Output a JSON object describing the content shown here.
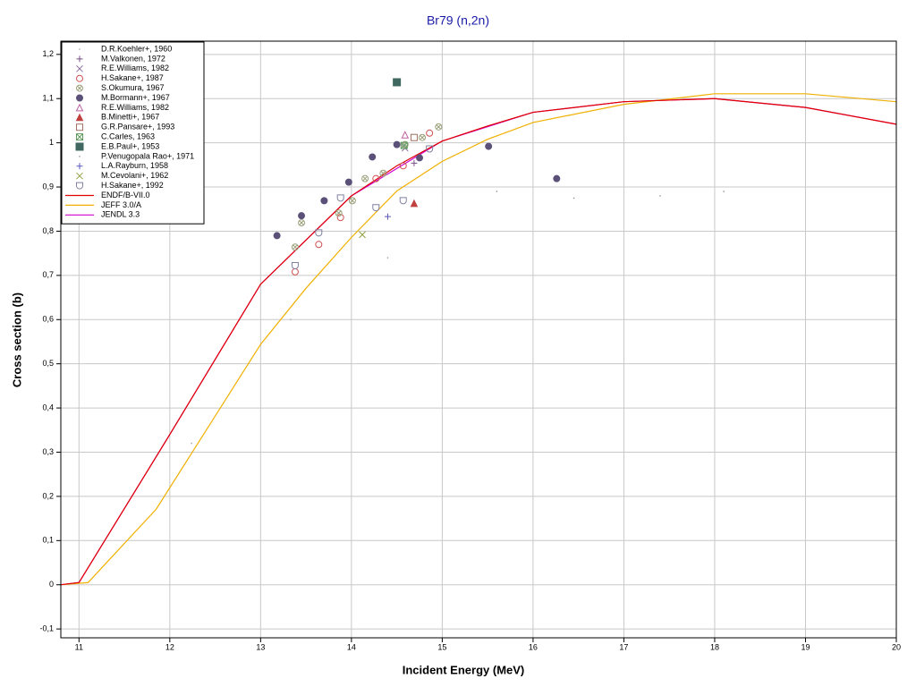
{
  "chart_data": {
    "type": "scatter",
    "title": "Br79 (n,2n)",
    "x_label": "Incident Energy (MeV)",
    "y_label": "Cross section (b)",
    "xlim": [
      10.8,
      20
    ],
    "ylim": [
      -0.12,
      1.23
    ],
    "xticks": [
      11,
      12,
      13,
      14,
      15,
      16,
      17,
      18,
      19,
      20
    ],
    "yticks": [
      {
        "value": -0.1,
        "label": "-0,1"
      },
      0,
      {
        "value": 0.1,
        "label": "0,1"
      },
      {
        "value": 0.2,
        "label": "0,2"
      },
      {
        "value": 0.3,
        "label": "0,3"
      },
      {
        "value": 0.4,
        "label": "0,4"
      },
      {
        "value": 0.5,
        "label": "0,5"
      },
      {
        "value": 0.6,
        "label": "0,6"
      },
      {
        "value": 0.7,
        "label": "0,7"
      },
      {
        "value": 0.8,
        "label": "0,8"
      },
      {
        "value": 0.9,
        "label": "0,9"
      },
      1,
      {
        "value": 1.1,
        "label": "1,1"
      },
      {
        "value": 1.2,
        "label": "1,2"
      }
    ],
    "grid": true,
    "legend": "top-left",
    "series": [
      {
        "name": "D.R.Koehler+, 1960",
        "color": "#a0a0a0",
        "marker": "dot",
        "x": [
          12.24,
          13.33,
          14.4
        ],
        "values": [
          0.32,
          0.6,
          0.74
        ]
      },
      {
        "name": "M.Valkonen, 1972",
        "color": "#7a4c8a",
        "marker": "plus",
        "x": [
          14.69
        ],
        "values": [
          0.954
        ]
      },
      {
        "name": "R.E.Williams, 1982",
        "color": "#8a6a9a",
        "marker": "x",
        "x": [
          14.59
        ],
        "values": [
          0.988
        ]
      },
      {
        "name": "H.Sakane+, 1987",
        "color": "#d05050",
        "marker": "circle",
        "x": [
          13.38,
          13.64,
          13.88,
          14.27,
          14.57,
          14.86
        ],
        "values": [
          0.708,
          0.77,
          0.831,
          0.919,
          0.948,
          1.022
        ]
      },
      {
        "name": "S.Okumura, 1967",
        "color": "#9aa07a",
        "marker": "circle-x",
        "x": [
          13.38,
          13.45,
          13.86,
          14.01,
          14.15,
          14.35,
          14.59,
          14.78,
          14.96
        ],
        "values": [
          0.764,
          0.819,
          0.841,
          0.869,
          0.919,
          0.931,
          0.996,
          1.012,
          1.036
        ]
      },
      {
        "name": "M.Bormann+, 1967",
        "color": "#5a5078",
        "marker": "filled-circle",
        "x": [
          13.18,
          13.45,
          13.7,
          13.97,
          14.23,
          14.5,
          14.75,
          15.51,
          16.26
        ],
        "values": [
          0.79,
          0.835,
          0.869,
          0.911,
          0.968,
          0.996,
          0.966,
          0.992,
          0.919
        ]
      },
      {
        "name": "R.E.Williams, 1982",
        "color": "#c060a0",
        "marker": "triangle",
        "x": [
          14.59
        ],
        "values": [
          1.018
        ]
      },
      {
        "name": "B.Minetti+, 1967",
        "color": "#c04040",
        "marker": "filled-triangle",
        "x": [
          14.69
        ],
        "values": [
          0.863
        ]
      },
      {
        "name": "G.R.Pansare+, 1993",
        "color": "#a07060",
        "marker": "square",
        "x": [
          14.69
        ],
        "values": [
          1.012
        ]
      },
      {
        "name": "C.Carles, 1963",
        "color": "#609a60",
        "marker": "square-x",
        "x": [
          14.58
        ],
        "values": [
          0.994
        ]
      },
      {
        "name": "E.B.Paul+, 1953",
        "color": "#406860",
        "marker": "filled-square",
        "x": [
          14.5
        ],
        "values": [
          1.137
        ]
      },
      {
        "name": "P.Venugopala Rao+, 1971",
        "color": "#909090",
        "marker": "dot",
        "x": [
          15.6,
          16.45,
          17.4,
          18.1
        ],
        "values": [
          0.89,
          0.875,
          0.88,
          0.89
        ]
      },
      {
        "name": "L.A.Rayburn, 1958",
        "color": "#5a5ac0",
        "marker": "plus",
        "x": [
          14.4
        ],
        "values": [
          0.833
        ]
      },
      {
        "name": "M.Cevolani+, 1962",
        "color": "#90a040",
        "marker": "x",
        "x": [
          14.12
        ],
        "values": [
          0.792
        ]
      },
      {
        "name": "H.Sakane+, 1992",
        "color": "#8080a0",
        "marker": "shield",
        "x": [
          13.38,
          13.64,
          13.88,
          14.27,
          14.57,
          14.86
        ],
        "values": [
          0.722,
          0.796,
          0.875,
          0.853,
          0.869,
          0.986
        ]
      },
      {
        "name": "ENDF/B-VII.0",
        "color": "#e00000",
        "marker": "line",
        "x": [
          10.8,
          11,
          12,
          13,
          14,
          14.5,
          15,
          15.5,
          16,
          17,
          18,
          19,
          20
        ],
        "values": [
          0,
          0.005,
          0.34,
          0.68,
          0.88,
          0.948,
          1.004,
          1.038,
          1.069,
          1.093,
          1.1,
          1.08,
          1.042
        ]
      },
      {
        "name": "JEFF 3.0/A",
        "color": "#f0b000",
        "marker": "line",
        "x": [
          10.8,
          11.1,
          11.85,
          13,
          13.5,
          14,
          14.5,
          15,
          15.5,
          16,
          17,
          18,
          19,
          20
        ],
        "values": [
          0,
          0.005,
          0.171,
          0.544,
          0.671,
          0.786,
          0.891,
          0.958,
          1.008,
          1.046,
          1.087,
          1.111,
          1.111,
          1.093
        ]
      },
      {
        "name": "JENDL 3.3",
        "color": "#d000d0",
        "marker": "line",
        "x": [
          10.8,
          11,
          12,
          13,
          14,
          15,
          16,
          17,
          18,
          19,
          20
        ],
        "values": [
          0,
          0.005,
          0.34,
          0.68,
          0.88,
          1.004,
          1.069,
          1.093,
          1.1,
          1.08,
          1.042
        ]
      }
    ]
  }
}
